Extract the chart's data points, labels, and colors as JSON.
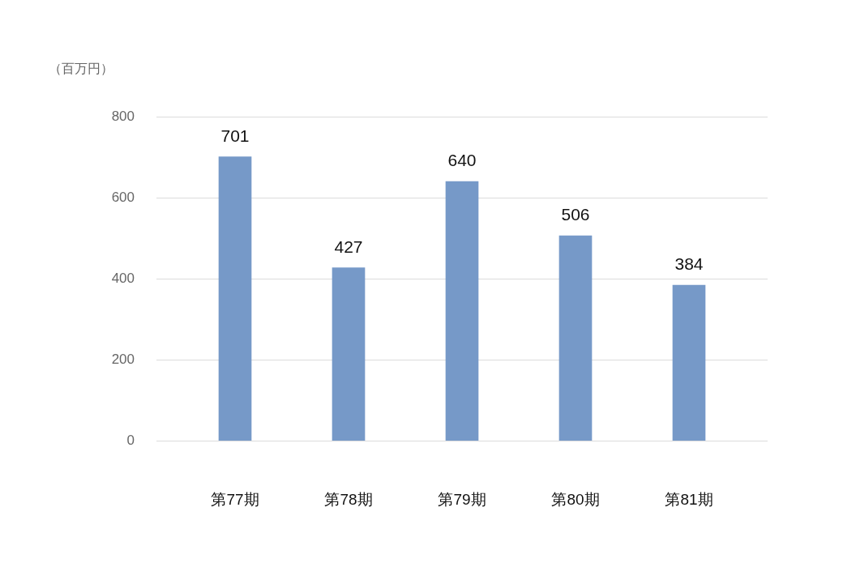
{
  "chart_data": {
    "type": "bar",
    "ylabel": "（百万円）",
    "categories": [
      "第77期",
      "第78期",
      "第79期",
      "第80期",
      "第81期"
    ],
    "values": [
      701,
      427,
      640,
      506,
      384
    ],
    "color": "#7699c8",
    "ylim": [
      0,
      800
    ],
    "yticks": [
      0,
      200,
      400,
      600,
      800
    ],
    "grid": "y",
    "legend": false,
    "data_labels": true
  }
}
